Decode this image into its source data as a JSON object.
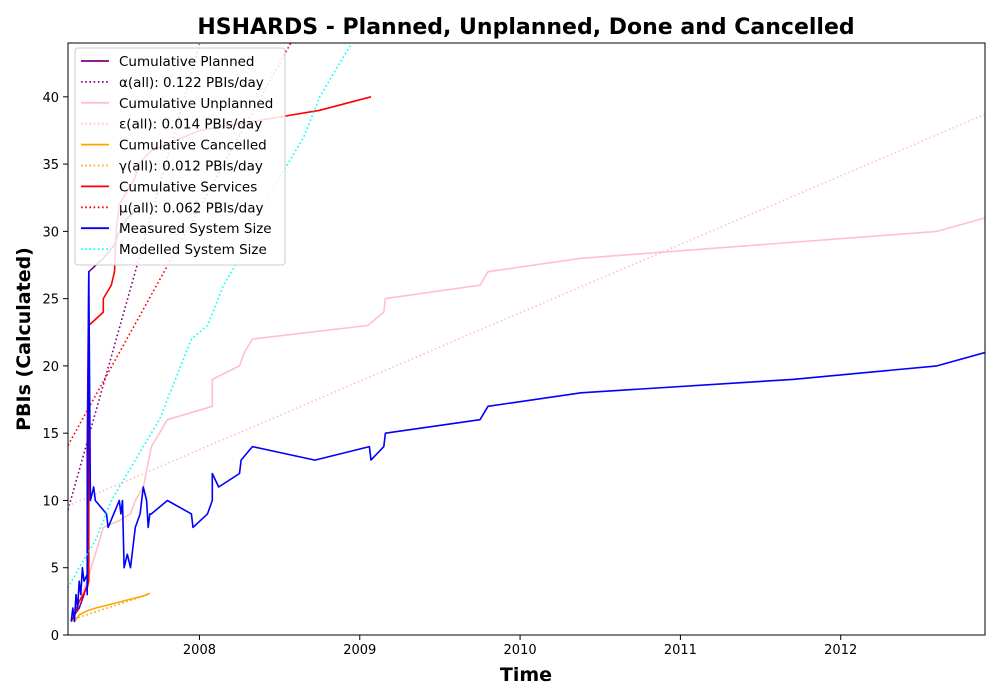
{
  "chart_data": {
    "type": "line",
    "title": "HSHARDS - Planned, Unplanned, Done  and Cancelled",
    "xlabel": "Time",
    "ylabel": "PBIs (Calculated)",
    "xlim": [
      2007.18,
      2012.9
    ],
    "ylim": [
      0,
      44
    ],
    "xticks": [
      2008,
      2009,
      2010,
      2011,
      2012
    ],
    "yticks": [
      0,
      5,
      10,
      15,
      20,
      25,
      30,
      35,
      40
    ],
    "grid": false,
    "legend_position": "top-left",
    "series": [
      {
        "name": "Cumulative Planned",
        "color": "#800080",
        "style": "solid",
        "points": [
          [
            2007.2,
            1
          ],
          [
            2007.22,
            1.5
          ],
          [
            2007.25,
            2
          ],
          [
            2007.28,
            3
          ],
          [
            2007.3,
            4
          ],
          [
            2007.3,
            14
          ],
          [
            2007.31,
            27
          ],
          [
            2007.4,
            28
          ],
          [
            2007.47,
            29
          ],
          [
            2007.5,
            30
          ],
          [
            2007.55,
            31
          ],
          [
            2007.6,
            31.5
          ]
        ]
      },
      {
        "name": "α(all): 0.122 PBIs/day",
        "color": "#800080",
        "style": "dotted",
        "points": [
          [
            2007.18,
            9.3
          ],
          [
            2008.0,
            43.9
          ]
        ]
      },
      {
        "name": "Cumulative Unplanned",
        "color": "#ffc0cb",
        "style": "solid",
        "points": [
          [
            2007.2,
            1
          ],
          [
            2007.3,
            4
          ],
          [
            2007.35,
            6
          ],
          [
            2007.4,
            8
          ],
          [
            2007.5,
            8.5
          ],
          [
            2007.57,
            9
          ],
          [
            2007.6,
            10
          ],
          [
            2007.65,
            11
          ],
          [
            2007.7,
            14
          ],
          [
            2007.75,
            15
          ],
          [
            2007.8,
            16
          ],
          [
            2008.08,
            17
          ],
          [
            2008.08,
            19
          ],
          [
            2008.25,
            20
          ],
          [
            2008.28,
            21
          ],
          [
            2008.33,
            22
          ],
          [
            2009.05,
            23
          ],
          [
            2009.15,
            24
          ],
          [
            2009.16,
            25
          ],
          [
            2009.75,
            26
          ],
          [
            2009.8,
            27
          ],
          [
            2010.38,
            28
          ],
          [
            2012.6,
            30
          ],
          [
            2012.9,
            31
          ]
        ]
      },
      {
        "name": "ε(all): 0.014 PBIs/day",
        "color": "#ffc0cb",
        "style": "dotted",
        "points": [
          [
            2007.18,
            9.6
          ],
          [
            2012.9,
            38.7
          ]
        ]
      },
      {
        "name": "Cumulative Cancelled",
        "color": "#ffa500",
        "style": "solid",
        "points": [
          [
            2007.22,
            1
          ],
          [
            2007.25,
            1.5
          ],
          [
            2007.3,
            1.8
          ],
          [
            2007.35,
            2
          ],
          [
            2007.45,
            2.3
          ],
          [
            2007.55,
            2.6
          ],
          [
            2007.65,
            2.9
          ],
          [
            2007.69,
            3.1
          ]
        ]
      },
      {
        "name": "γ(all): 0.012 PBIs/day",
        "color": "#ffa500",
        "style": "dotted",
        "points": [
          [
            2007.22,
            1.2
          ],
          [
            2007.69,
            3.05
          ]
        ]
      },
      {
        "name": "Cumulative Services",
        "color": "#ff0000",
        "style": "solid",
        "points": [
          [
            2007.2,
            1
          ],
          [
            2007.22,
            1.5
          ],
          [
            2007.25,
            2.5
          ],
          [
            2007.3,
            3.5
          ],
          [
            2007.31,
            4
          ],
          [
            2007.31,
            23
          ],
          [
            2007.4,
            24
          ],
          [
            2007.4,
            25
          ],
          [
            2007.45,
            26
          ],
          [
            2007.47,
            27
          ],
          [
            2007.48,
            30
          ],
          [
            2007.5,
            32
          ],
          [
            2007.6,
            34
          ],
          [
            2007.62,
            35
          ],
          [
            2007.7,
            36
          ],
          [
            2008.0,
            37.5
          ],
          [
            2008.25,
            38
          ],
          [
            2008.5,
            38.5
          ],
          [
            2008.75,
            39
          ],
          [
            2009.07,
            40
          ]
        ]
      },
      {
        "name": "μ(all): 0.062 PBIs/day",
        "color": "#ff0000",
        "style": "dotted",
        "points": [
          [
            2007.18,
            14.1
          ],
          [
            2008.57,
            44
          ]
        ]
      },
      {
        "name": "Measured System Size",
        "color": "#0000ff",
        "style": "solid",
        "points": [
          [
            2007.2,
            1
          ],
          [
            2007.21,
            2
          ],
          [
            2007.22,
            1
          ],
          [
            2007.23,
            3
          ],
          [
            2007.24,
            2
          ],
          [
            2007.25,
            4
          ],
          [
            2007.26,
            3
          ],
          [
            2007.27,
            5
          ],
          [
            2007.28,
            4
          ],
          [
            2007.3,
            4.5
          ],
          [
            2007.3,
            3
          ],
          [
            2007.31,
            27
          ],
          [
            2007.32,
            10
          ],
          [
            2007.34,
            11
          ],
          [
            2007.35,
            10
          ],
          [
            2007.42,
            9
          ],
          [
            2007.43,
            8
          ],
          [
            2007.5,
            10
          ],
          [
            2007.51,
            9
          ],
          [
            2007.52,
            10
          ],
          [
            2007.53,
            5
          ],
          [
            2007.55,
            6
          ],
          [
            2007.57,
            5
          ],
          [
            2007.6,
            8
          ],
          [
            2007.63,
            9
          ],
          [
            2007.65,
            11
          ],
          [
            2007.67,
            10
          ],
          [
            2007.68,
            8
          ],
          [
            2007.69,
            9
          ],
          [
            2007.7,
            9
          ],
          [
            2007.8,
            10
          ],
          [
            2007.95,
            9
          ],
          [
            2007.96,
            8
          ],
          [
            2008.05,
            9
          ],
          [
            2008.08,
            10
          ],
          [
            2008.08,
            12
          ],
          [
            2008.12,
            11
          ],
          [
            2008.25,
            12
          ],
          [
            2008.26,
            13
          ],
          [
            2008.33,
            14
          ],
          [
            2008.72,
            13
          ],
          [
            2009.06,
            14
          ],
          [
            2009.07,
            13
          ],
          [
            2009.15,
            14
          ],
          [
            2009.16,
            15
          ],
          [
            2009.75,
            16
          ],
          [
            2009.8,
            17
          ],
          [
            2010.38,
            18
          ],
          [
            2011.7,
            19
          ],
          [
            2012.6,
            20
          ],
          [
            2012.9,
            21
          ]
        ]
      },
      {
        "name": "Modelled System Size",
        "color": "#00ffff",
        "style": "dotted",
        "points": [
          [
            2007.18,
            3.5
          ],
          [
            2007.25,
            5
          ],
          [
            2007.35,
            7
          ],
          [
            2007.45,
            10
          ],
          [
            2007.55,
            12
          ],
          [
            2007.65,
            14
          ],
          [
            2007.75,
            16
          ],
          [
            2007.85,
            19
          ],
          [
            2007.95,
            22
          ],
          [
            2008.05,
            23
          ],
          [
            2008.15,
            26
          ],
          [
            2008.25,
            28
          ],
          [
            2008.35,
            31
          ],
          [
            2008.45,
            33
          ],
          [
            2008.55,
            35
          ],
          [
            2008.65,
            37
          ],
          [
            2008.75,
            40
          ],
          [
            2008.85,
            42
          ],
          [
            2008.95,
            44
          ]
        ]
      }
    ]
  }
}
